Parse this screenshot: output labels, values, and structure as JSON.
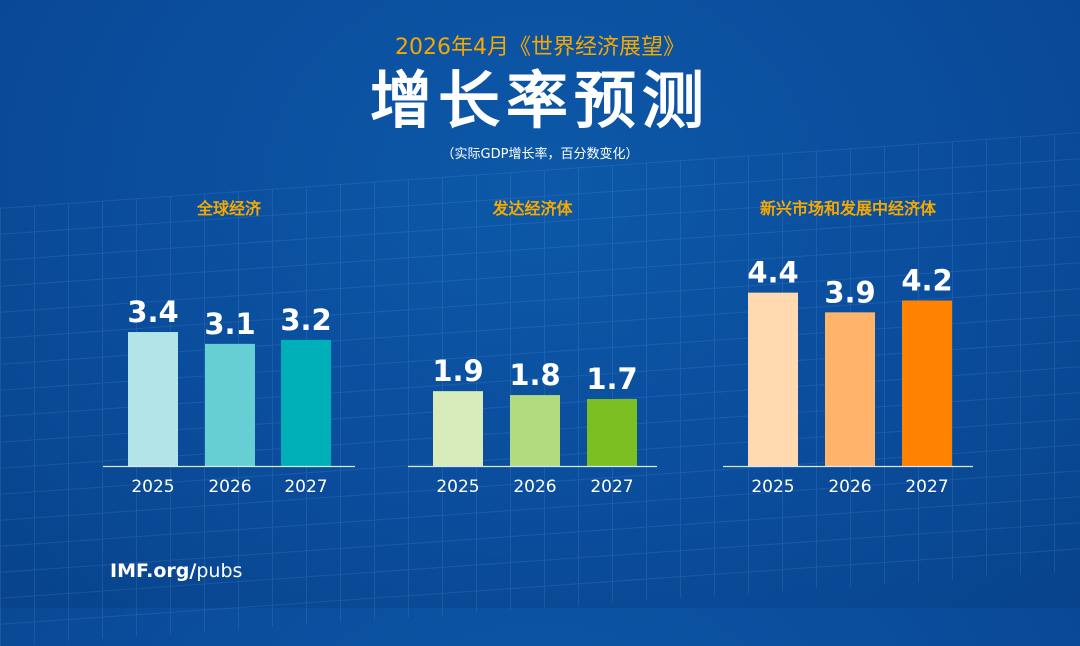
{
  "header": {
    "subtitle": "2026年4月《世界经济展望》",
    "title": "增长率预测",
    "note": "（实际GDP增长率，百分数变化）"
  },
  "footer": {
    "bold": "IMF.org/",
    "rest": "pubs"
  },
  "chart_data": [
    {
      "type": "bar",
      "title": "全球经济",
      "categories": [
        "2025",
        "2026",
        "2027"
      ],
      "values": [
        3.4,
        3.1,
        3.2
      ],
      "colors": [
        "#b3e5e8",
        "#66cfd3",
        "#00b0b8"
      ],
      "ylim": [
        0,
        5
      ],
      "grid": false
    },
    {
      "type": "bar",
      "title": "发达经济体",
      "categories": [
        "2025",
        "2026",
        "2027"
      ],
      "values": [
        1.9,
        1.8,
        1.7
      ],
      "colors": [
        "#d8ebbb",
        "#b2da7e",
        "#7bbf22"
      ],
      "ylim": [
        0,
        5
      ],
      "grid": false
    },
    {
      "type": "bar",
      "title": "新兴市场和发展中经济体",
      "categories": [
        "2025",
        "2026",
        "2027"
      ],
      "values": [
        4.4,
        3.9,
        4.2
      ],
      "colors": [
        "#ffd9b0",
        "#ffb36b",
        "#ff8200"
      ],
      "ylim": [
        0,
        5
      ],
      "grid": false
    }
  ]
}
